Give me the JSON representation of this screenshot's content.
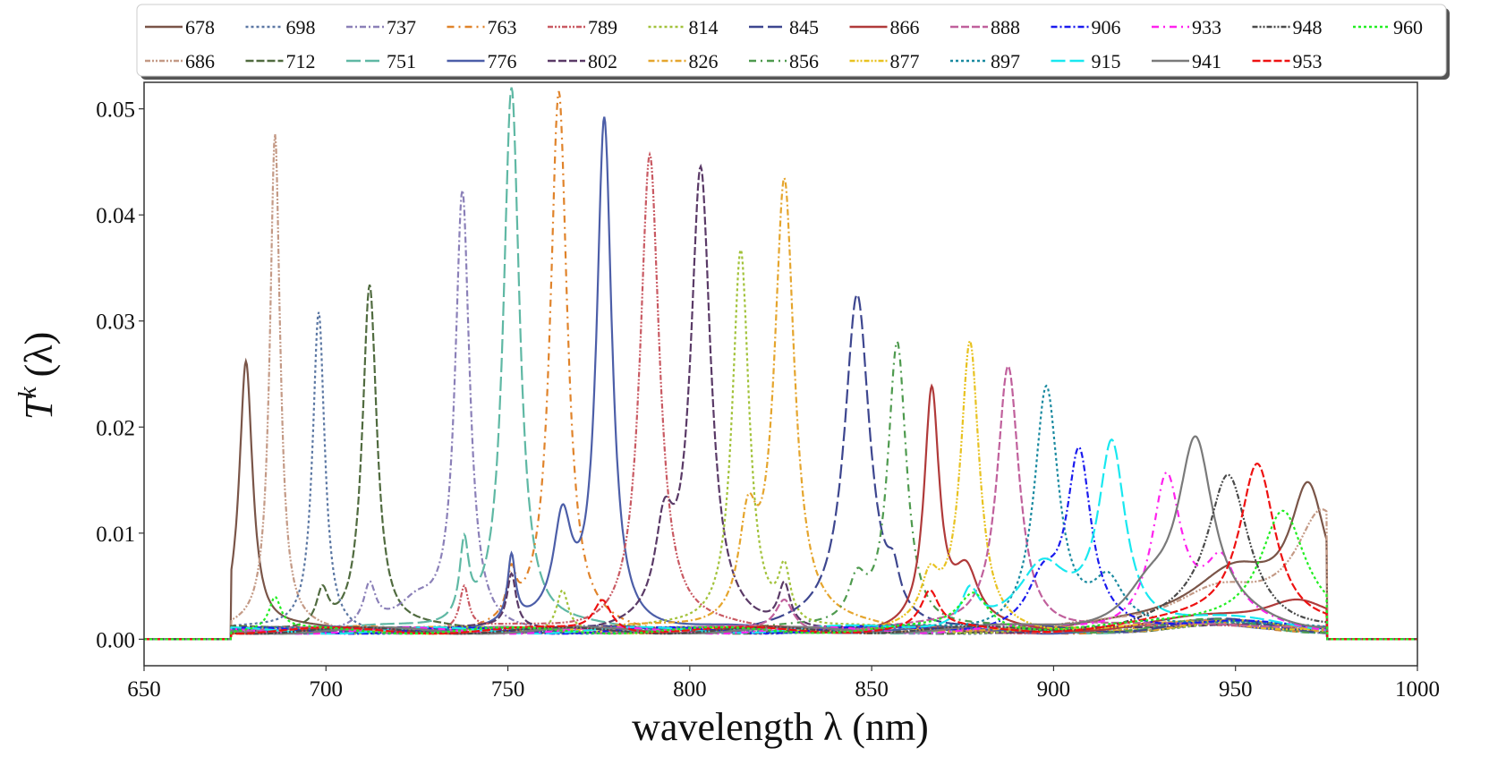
{
  "chart_data": {
    "type": "line",
    "title": "",
    "xlabel": "wavelength λ (nm)",
    "ylabel": "T^k (λ)",
    "ylabel_main": "T",
    "ylabel_sup": "k",
    "ylabel_rest": " (λ)",
    "xlim": [
      650,
      1000
    ],
    "ylim": [
      -0.0025,
      0.0525
    ],
    "xticks": [
      650,
      700,
      750,
      800,
      850,
      900,
      950,
      1000
    ],
    "xtick_labels": [
      "650",
      "700",
      "750",
      "800",
      "850",
      "900",
      "950",
      "1000"
    ],
    "yticks": [
      0.0,
      0.01,
      0.02,
      0.03,
      0.04,
      0.05
    ],
    "ytick_labels": [
      "0.00",
      "0.01",
      "0.02",
      "0.03",
      "0.04",
      "0.05"
    ],
    "grid": false,
    "legend_position": "top",
    "support_range_nm": [
      674,
      975
    ],
    "series": [
      {
        "name": "678",
        "color": "#7a5548",
        "dash": "solid",
        "peak_nm": 678,
        "peak_value": 0.0254,
        "width_nm": 2.2,
        "secondary": [
          [
            970,
            0.012,
            6
          ],
          [
            950,
            0.005,
            14
          ]
        ]
      },
      {
        "name": "686",
        "color": "#c49a86",
        "dash": "dashdotdot",
        "peak_nm": 686,
        "peak_value": 0.0465,
        "width_nm": 1.7,
        "secondary": [
          [
            974,
            0.0105,
            9
          ],
          [
            945,
            0.003,
            15
          ]
        ]
      },
      {
        "name": "698",
        "color": "#5b77a3",
        "dash": "dotted",
        "peak_nm": 698,
        "peak_value": 0.0302,
        "width_nm": 2.0,
        "secondary": []
      },
      {
        "name": "712",
        "color": "#506b3f",
        "dash": "dashed",
        "peak_nm": 712,
        "peak_value": 0.0326,
        "width_nm": 2.4,
        "secondary": [
          [
            699,
            0.0035,
            2
          ]
        ]
      },
      {
        "name": "737",
        "color": "#8b80b8",
        "dash": "dashdot",
        "peak_nm": 737.5,
        "peak_value": 0.0412,
        "width_nm": 2.4,
        "secondary": [
          [
            712,
            0.0038,
            2
          ],
          [
            725,
            0.002,
            6
          ]
        ]
      },
      {
        "name": "751",
        "color": "#5fb8a4",
        "dash": "longdash",
        "peak_nm": 751,
        "peak_value": 0.0513,
        "width_nm": 2.7,
        "secondary": [
          [
            738,
            0.0072,
            1.5
          ]
        ]
      },
      {
        "name": "763",
        "color": "#e0832a",
        "dash": "dashdot2",
        "peak_nm": 764,
        "peak_value": 0.0505,
        "width_nm": 2.8,
        "secondary": [
          [
            751,
            0.004,
            1.5
          ]
        ]
      },
      {
        "name": "776",
        "color": "#4c5ea8",
        "dash": "solid",
        "peak_nm": 776.5,
        "peak_value": 0.048,
        "width_nm": 2.5,
        "secondary": [
          [
            765,
            0.0095,
            3
          ],
          [
            751,
            0.0062,
            1.3
          ]
        ]
      },
      {
        "name": "789",
        "color": "#c95a63",
        "dash": "dashdotdot",
        "peak_nm": 789,
        "peak_value": 0.045,
        "width_nm": 3.2,
        "secondary": [
          [
            738,
            0.004,
            1.5
          ]
        ]
      },
      {
        "name": "802",
        "color": "#5a3a67",
        "dash": "dashed",
        "peak_nm": 803,
        "peak_value": 0.0428,
        "width_nm": 3.3,
        "secondary": [
          [
            793,
            0.008,
            3
          ],
          [
            751,
            0.005,
            1.5
          ],
          [
            826,
            0.004,
            2
          ]
        ]
      },
      {
        "name": "814",
        "color": "#a2c23a",
        "dash": "dotted",
        "peak_nm": 814,
        "peak_value": 0.036,
        "width_nm": 2.8,
        "secondary": [
          [
            826,
            0.005,
            2
          ],
          [
            765,
            0.004,
            2
          ]
        ]
      },
      {
        "name": "826",
        "color": "#e5a52d",
        "dash": "dashdot",
        "peak_nm": 826,
        "peak_value": 0.042,
        "width_nm": 3.3,
        "secondary": [
          [
            816,
            0.009,
            3
          ]
        ]
      },
      {
        "name": "845",
        "color": "#3d468f",
        "dash": "longdash",
        "peak_nm": 846,
        "peak_value": 0.0315,
        "width_nm": 4.2,
        "secondary": [
          [
            856,
            0.003,
            2
          ]
        ]
      },
      {
        "name": "856",
        "color": "#4e9a4e",
        "dash": "dashdot2",
        "peak_nm": 857,
        "peak_value": 0.0273,
        "width_nm": 3.1,
        "secondary": [
          [
            846,
            0.004,
            3
          ]
        ]
      },
      {
        "name": "866",
        "color": "#b03a3a",
        "dash": "solid",
        "peak_nm": 866.5,
        "peak_value": 0.0222,
        "width_nm": 2.5,
        "secondary": [
          [
            876,
            0.0048,
            4
          ],
          [
            967,
            0.003,
            12
          ]
        ]
      },
      {
        "name": "877",
        "color": "#e8c220",
        "dash": "dashdotdot",
        "peak_nm": 877,
        "peak_value": 0.0268,
        "width_nm": 3.1,
        "secondary": [
          [
            866,
            0.004,
            3
          ]
        ]
      },
      {
        "name": "888",
        "color": "#c0609c",
        "dash": "dashed",
        "peak_nm": 887.5,
        "peak_value": 0.0252,
        "width_nm": 3.7,
        "secondary": [
          [
            826,
            0.003,
            3
          ]
        ]
      },
      {
        "name": "897",
        "color": "#1a8aa0",
        "dash": "dotted",
        "peak_nm": 898,
        "peak_value": 0.0228,
        "width_nm": 4.0,
        "secondary": [
          [
            915,
            0.004,
            5
          ]
        ]
      },
      {
        "name": "906",
        "color": "#1a1aee",
        "dash": "dashdot",
        "peak_nm": 907,
        "peak_value": 0.0162,
        "width_nm": 4.0,
        "secondary": [
          [
            897,
            0.004,
            5
          ]
        ]
      },
      {
        "name": "915",
        "color": "#18e8f0",
        "dash": "longdash",
        "peak_nm": 916,
        "peak_value": 0.0172,
        "width_nm": 4.5,
        "secondary": [
          [
            897,
            0.0055,
            8
          ],
          [
            877,
            0.0035,
            3
          ]
        ]
      },
      {
        "name": "933",
        "color": "#ff22ee",
        "dash": "dashdot2",
        "peak_nm": 931,
        "peak_value": 0.0141,
        "width_nm": 4.8,
        "secondary": [
          [
            946,
            0.005,
            5
          ]
        ]
      },
      {
        "name": "941",
        "color": "#7a7a7a",
        "dash": "solid",
        "peak_nm": 939,
        "peak_value": 0.0165,
        "width_nm": 5.8,
        "secondary": [
          [
            926,
            0.003,
            8
          ]
        ]
      },
      {
        "name": "948",
        "color": "#4a4a4a",
        "dash": "dashdotdot",
        "peak_nm": 948,
        "peak_value": 0.0139,
        "width_nm": 6.8,
        "secondary": []
      },
      {
        "name": "953",
        "color": "#ee1111",
        "dash": "dashed",
        "peak_nm": 956,
        "peak_value": 0.0155,
        "width_nm": 6.0,
        "secondary": [
          [
            866,
            0.0035,
            3
          ],
          [
            776,
            0.003,
            3
          ]
        ]
      },
      {
        "name": "960",
        "color": "#22ee22",
        "dash": "dotted",
        "peak_nm": 963,
        "peak_value": 0.011,
        "width_nm": 7.5,
        "secondary": [
          [
            686,
            0.003,
            2
          ],
          [
            878,
            0.0035,
            5
          ]
        ]
      }
    ]
  }
}
